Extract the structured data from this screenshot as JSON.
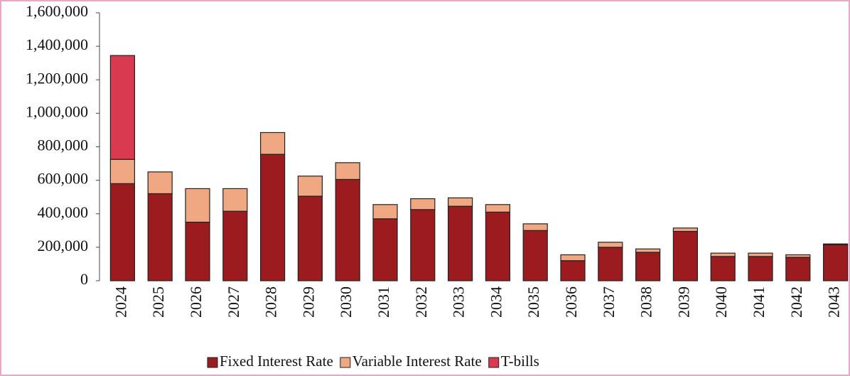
{
  "chart_data": {
    "type": "stacked_bar",
    "categories": [
      "2024",
      "2025",
      "2026",
      "2027",
      "2028",
      "2029",
      "2030",
      "2031",
      "2032",
      "2033",
      "2034",
      "2035",
      "2036",
      "2037",
      "2038",
      "2039",
      "2040",
      "2041",
      "2042",
      "2043"
    ],
    "series": [
      {
        "name": "Fixed Interest Rate",
        "color": "#9b1b1f",
        "values": [
          580000,
          520000,
          350000,
          415000,
          755000,
          505000,
          605000,
          370000,
          425000,
          445000,
          410000,
          300000,
          120000,
          200000,
          170000,
          295000,
          145000,
          145000,
          140000,
          215000
        ]
      },
      {
        "name": "Variable Interest Rate",
        "color": "#f0a882",
        "values": [
          145000,
          130000,
          200000,
          135000,
          130000,
          120000,
          100000,
          85000,
          65000,
          50000,
          45000,
          40000,
          35000,
          30000,
          20000,
          20000,
          20000,
          20000,
          15000,
          5000
        ]
      },
      {
        "name": "T-bills",
        "color": "#d93a50",
        "values": [
          620000,
          0,
          0,
          0,
          0,
          0,
          0,
          0,
          0,
          0,
          0,
          0,
          0,
          0,
          0,
          0,
          0,
          0,
          0,
          0
        ]
      }
    ],
    "ylim": [
      0,
      1600000
    ],
    "yticks": [
      0,
      {
        "value": 200000,
        "label": "200,000"
      },
      {
        "value": 400000,
        "label": "400,000"
      },
      {
        "value": 600000,
        "label": "600,000"
      },
      {
        "value": 800000,
        "label": "800,000"
      },
      {
        "value": 1000000,
        "label": "1,000,000"
      },
      {
        "value": 1200000,
        "label": "1,200,000"
      },
      {
        "value": 1400000,
        "label": "1,400,000"
      },
      {
        "value": 1600000,
        "label": "1,600,000"
      }
    ],
    "legend": "bottom",
    "grid": false
  }
}
